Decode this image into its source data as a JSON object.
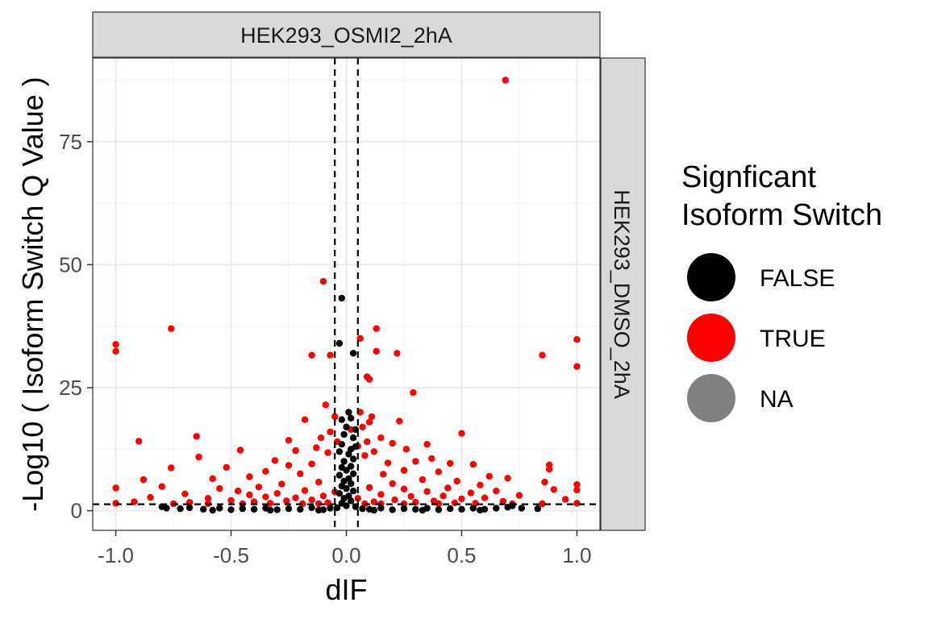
{
  "chart_data": {
    "type": "scatter",
    "facet_top": "HEK293_OSMI2_2hA",
    "facet_right": "HEK293_DMSO_2hA",
    "xlabel": "dIF",
    "ylabel": "-Log10 ( Isoform Switch Q Value )",
    "xlim": [
      -1.1,
      1.1
    ],
    "ylim": [
      -4,
      92
    ],
    "x_ticks": [
      -1.0,
      -0.5,
      0.0,
      0.5,
      1.0
    ],
    "x_tick_labels": [
      "-1.0",
      "-0.5",
      "0.0",
      "0.5",
      "1.0"
    ],
    "y_ticks": [
      0,
      25,
      50,
      75
    ],
    "y_tick_labels": [
      "0",
      "25",
      "50",
      "75"
    ],
    "grid": true,
    "reference_lines": {
      "vertical_dIF": [
        -0.05,
        0.05
      ],
      "horizontal": 1.3,
      "style": "dashed"
    },
    "legend": {
      "title_lines": [
        "Signficant",
        "Isoform Switch"
      ],
      "placement": "right",
      "entries": [
        {
          "label": "FALSE",
          "color": "#000000"
        },
        {
          "label": "TRUE",
          "color": "#ff0000"
        },
        {
          "label": "NA",
          "color": "#808080"
        }
      ]
    },
    "series": [
      {
        "name": "TRUE",
        "color": "#ff0000",
        "points": [
          [
            0.69,
            87.5
          ],
          [
            -0.1,
            46.6
          ],
          [
            -0.76,
            37.0
          ],
          [
            0.13,
            37.0
          ],
          [
            0.06,
            35.0
          ],
          [
            -1.0,
            33.8
          ],
          [
            -1.0,
            32.4
          ],
          [
            0.13,
            32.4
          ],
          [
            0.22,
            32.0
          ],
          [
            -0.15,
            31.6
          ],
          [
            -0.07,
            31.6
          ],
          [
            0.85,
            31.6
          ],
          [
            1.0,
            34.8
          ],
          [
            1.0,
            29.3
          ],
          [
            0.09,
            27.2
          ],
          [
            0.1,
            26.7
          ],
          [
            0.29,
            24.0
          ],
          [
            -0.09,
            21.5
          ],
          [
            0.06,
            20.0
          ],
          [
            -0.05,
            19.1
          ],
          [
            0.11,
            19.1
          ],
          [
            -0.18,
            18.5
          ],
          [
            0.1,
            18.0
          ],
          [
            0.23,
            18.2
          ],
          [
            0.07,
            17.0
          ],
          [
            0.02,
            16.5
          ],
          [
            -0.07,
            16.0
          ],
          [
            0.5,
            15.7
          ],
          [
            -0.11,
            14.8
          ],
          [
            -0.65,
            15.1
          ],
          [
            0.15,
            14.8
          ],
          [
            -0.25,
            14.3
          ],
          [
            -0.04,
            14.0
          ],
          [
            -0.9,
            14.1
          ],
          [
            0.09,
            14.0
          ],
          [
            0.2,
            13.7
          ],
          [
            0.35,
            13.5
          ],
          [
            -0.13,
            12.8
          ],
          [
            -0.46,
            12.3
          ],
          [
            0.05,
            13.1
          ],
          [
            0.26,
            12.5
          ],
          [
            -0.22,
            12.2
          ],
          [
            0.12,
            12.0
          ],
          [
            -0.08,
            11.8
          ],
          [
            0.37,
            10.6
          ],
          [
            -0.64,
            10.9
          ],
          [
            0.08,
            11.2
          ],
          [
            -0.31,
            10.2
          ],
          [
            0.3,
            10.0
          ],
          [
            -0.15,
            9.5
          ],
          [
            0.18,
            9.7
          ],
          [
            -0.25,
            9.2
          ],
          [
            0.45,
            9.6
          ],
          [
            0.55,
            9.4
          ],
          [
            0.88,
            9.3
          ],
          [
            -0.52,
            8.8
          ],
          [
            -0.76,
            8.7
          ],
          [
            0.88,
            8.4
          ],
          [
            0.25,
            8.2
          ],
          [
            -0.35,
            8.0
          ],
          [
            0.4,
            7.9
          ],
          [
            -0.2,
            7.5
          ],
          [
            0.16,
            7.4
          ],
          [
            0.62,
            7.0
          ],
          [
            -0.42,
            6.9
          ],
          [
            0.7,
            6.6
          ],
          [
            -0.58,
            6.5
          ],
          [
            0.33,
            6.3
          ],
          [
            -0.88,
            6.3
          ],
          [
            0.48,
            6.0
          ],
          [
            -0.12,
            5.8
          ],
          [
            0.86,
            5.8
          ],
          [
            0.2,
            5.5
          ],
          [
            -0.28,
            5.4
          ],
          [
            0.58,
            5.2
          ],
          [
            -0.8,
            4.9
          ],
          [
            1.0,
            5.3
          ],
          [
            -0.38,
            4.8
          ],
          [
            0.1,
            4.7
          ],
          [
            0.44,
            4.6
          ],
          [
            -1.0,
            4.6
          ],
          [
            -0.55,
            4.5
          ],
          [
            0.25,
            4.4
          ],
          [
            0.9,
            4.3
          ],
          [
            1.0,
            4.2
          ],
          [
            -0.18,
            4.1
          ],
          [
            -0.47,
            4.0
          ],
          [
            0.65,
            4.0
          ],
          [
            0.35,
            3.9
          ],
          [
            -0.05,
            3.8
          ],
          [
            0.54,
            3.6
          ],
          [
            -0.3,
            3.5
          ],
          [
            -0.7,
            3.4
          ],
          [
            0.15,
            3.3
          ],
          [
            -0.42,
            3.2
          ],
          [
            0.75,
            3.1
          ],
          [
            -0.1,
            3.0
          ],
          [
            0.42,
            3.0
          ],
          [
            0.28,
            2.9
          ],
          [
            -0.35,
            2.8
          ],
          [
            -0.85,
            2.7
          ],
          [
            -0.22,
            2.6
          ],
          [
            0.6,
            2.6
          ],
          [
            0.05,
            2.5
          ],
          [
            -0.6,
            2.5
          ],
          [
            0.5,
            2.4
          ],
          [
            0.95,
            2.3
          ],
          [
            -0.15,
            2.2
          ],
          [
            0.21,
            2.2
          ],
          [
            -0.5,
            2.1
          ],
          [
            0.38,
            2.0
          ],
          [
            -0.26,
            2.0
          ],
          [
            0.68,
            1.9
          ],
          [
            -0.92,
            1.8
          ],
          [
            0.12,
            1.8
          ],
          [
            -0.4,
            1.8
          ],
          [
            -0.68,
            1.7
          ],
          [
            0.3,
            1.7
          ],
          [
            -0.08,
            1.6
          ],
          [
            0.47,
            1.6
          ],
          [
            -1.0,
            1.5
          ],
          [
            1.0,
            1.5
          ],
          [
            -0.33,
            1.5
          ],
          [
            0.56,
            1.5
          ],
          [
            -0.19,
            1.4
          ],
          [
            0.25,
            1.4
          ],
          [
            -0.6,
            1.4
          ],
          [
            0.85,
            1.4
          ],
          [
            0.15,
            1.4
          ],
          [
            -0.45,
            1.4
          ],
          [
            0.72,
            1.4
          ],
          [
            -0.12,
            1.4
          ],
          [
            0.4,
            1.4
          ],
          [
            -0.75,
            1.4
          ],
          [
            0.08,
            1.4
          ]
        ]
      },
      {
        "name": "FALSE",
        "color": "#000000",
        "points": [
          [
            -0.02,
            43.2
          ],
          [
            -0.03,
            34.0
          ],
          [
            0.03,
            32.0
          ],
          [
            0.01,
            20.0
          ],
          [
            0.02,
            18.8
          ],
          [
            -0.02,
            18.5
          ],
          [
            0.0,
            17.0
          ],
          [
            0.04,
            16.5
          ],
          [
            -0.01,
            15.5
          ],
          [
            0.03,
            14.8
          ],
          [
            0.04,
            13.0
          ],
          [
            0.02,
            12.5
          ],
          [
            -0.02,
            13.5
          ],
          [
            -0.03,
            12.0
          ],
          [
            0.01,
            11.5
          ],
          [
            0.03,
            10.5
          ],
          [
            -0.01,
            10.0
          ],
          [
            0.02,
            9.0
          ],
          [
            -0.02,
            8.8
          ],
          [
            0.0,
            8.2
          ],
          [
            0.03,
            7.5
          ],
          [
            -0.03,
            7.2
          ],
          [
            0.01,
            6.5
          ],
          [
            -0.01,
            6.0
          ],
          [
            0.02,
            5.5
          ],
          [
            -0.02,
            5.0
          ],
          [
            0.0,
            4.5
          ],
          [
            0.03,
            4.0
          ],
          [
            -0.03,
            3.5
          ],
          [
            0.01,
            3.0
          ],
          [
            -0.01,
            2.5
          ],
          [
            0.02,
            2.0
          ],
          [
            -0.02,
            1.5
          ],
          [
            0.0,
            1.0
          ],
          [
            0.04,
            0.8
          ],
          [
            -0.04,
            0.6
          ],
          [
            -0.8,
            0.8
          ],
          [
            -0.78,
            0.5
          ],
          [
            -0.72,
            0.4
          ],
          [
            -0.68,
            0.6
          ],
          [
            -0.62,
            0.3
          ],
          [
            -0.55,
            0.5
          ],
          [
            -0.5,
            0.2
          ],
          [
            -0.45,
            0.4
          ],
          [
            -0.4,
            0.3
          ],
          [
            -0.35,
            0.5
          ],
          [
            -0.3,
            0.2
          ],
          [
            -0.25,
            0.4
          ],
          [
            -0.2,
            0.3
          ],
          [
            -0.15,
            0.6
          ],
          [
            -0.1,
            0.2
          ],
          [
            -0.07,
            0.5
          ],
          [
            0.07,
            0.4
          ],
          [
            0.1,
            0.3
          ],
          [
            0.15,
            0.5
          ],
          [
            0.2,
            0.2
          ],
          [
            0.25,
            0.4
          ],
          [
            0.3,
            0.3
          ],
          [
            0.35,
            0.5
          ],
          [
            0.4,
            0.2
          ],
          [
            0.45,
            0.4
          ],
          [
            0.5,
            0.3
          ],
          [
            0.55,
            0.5
          ],
          [
            0.6,
            0.3
          ],
          [
            0.65,
            0.5
          ],
          [
            0.7,
            0.7
          ],
          [
            0.72,
            1.0
          ],
          [
            0.76,
            0.5
          ],
          [
            0.83,
            0.4
          ],
          [
            -0.58,
            0.1
          ],
          [
            -0.33,
            0.1
          ],
          [
            -0.12,
            0.1
          ],
          [
            0.12,
            0.1
          ],
          [
            0.33,
            0.1
          ],
          [
            0.58,
            0.1
          ]
        ]
      }
    ]
  }
}
